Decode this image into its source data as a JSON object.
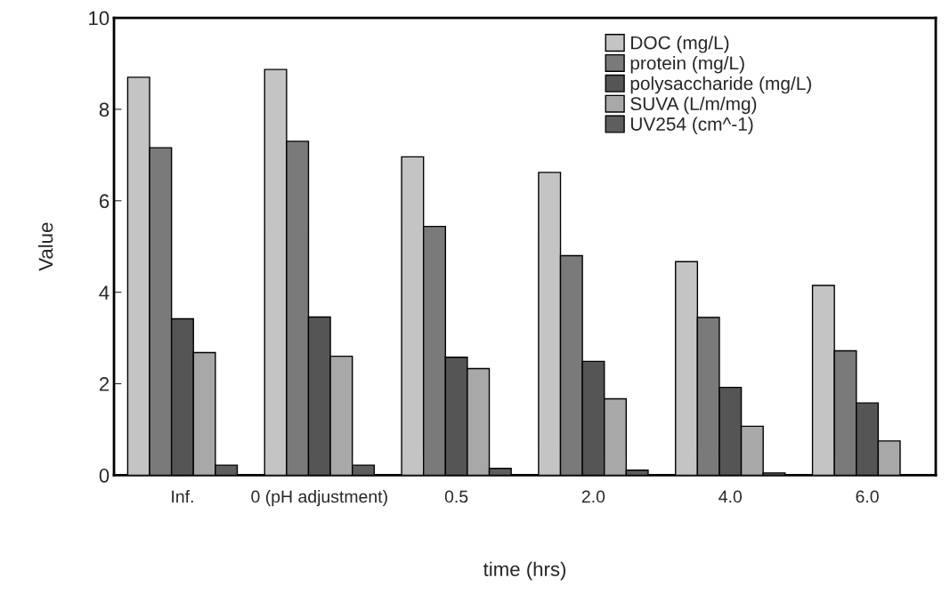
{
  "chart_data": {
    "type": "bar",
    "xlabel": "time (hrs)",
    "ylabel": "Value",
    "categories": [
      "Inf.",
      "0 (pH adjustment)",
      "0.5",
      "2.0",
      "4.0",
      "6.0"
    ],
    "series": [
      {
        "name": "DOC (mg/L)",
        "color": "#c4c4c4",
        "values": [
          8.7,
          8.87,
          6.96,
          6.62,
          4.67,
          4.15
        ]
      },
      {
        "name": "protein (mg/L)",
        "color": "#7a7a7a",
        "values": [
          7.16,
          7.3,
          5.44,
          4.8,
          3.45,
          2.72
        ]
      },
      {
        "name": "polysaccharide (mg/L)",
        "color": "#555555",
        "values": [
          3.42,
          3.46,
          2.58,
          2.49,
          1.92,
          1.58
        ]
      },
      {
        "name": "SUVA (L/m/mg)",
        "color": "#a8a8a8",
        "values": [
          2.68,
          2.6,
          2.33,
          1.67,
          1.07,
          0.75
        ]
      },
      {
        "name": "UV254 (cm^-1)",
        "color": "#5e5e5e",
        "values": [
          0.22,
          0.22,
          0.15,
          0.11,
          0.05,
          null
        ]
      }
    ],
    "ylim": [
      0,
      10
    ],
    "yticks": [
      0,
      2,
      4,
      6,
      8,
      10
    ],
    "grid": false,
    "legend": "top right"
  }
}
